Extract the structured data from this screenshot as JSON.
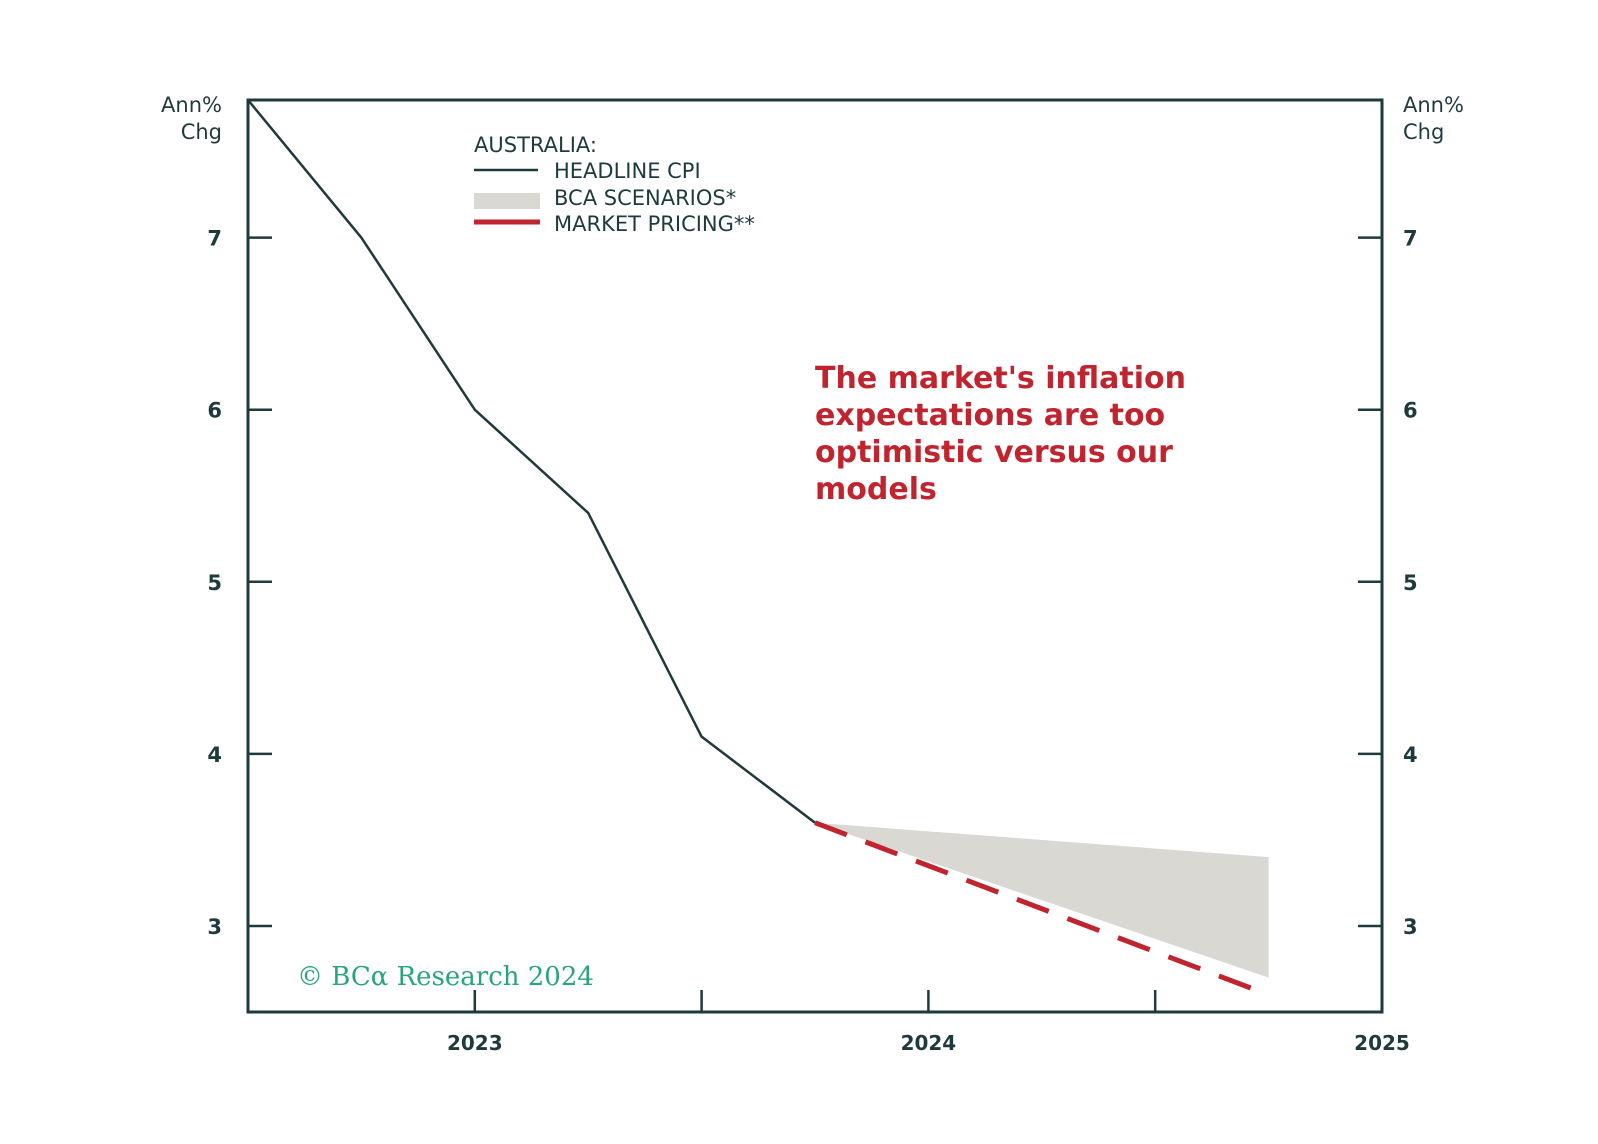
{
  "chart_data": {
    "type": "line",
    "title": "AUSTRALIA:",
    "y_unit_left": [
      "Ann%",
      "Chg"
    ],
    "y_unit_right": [
      "Ann%",
      "Chg"
    ],
    "ylim": [
      2.5,
      7.8
    ],
    "yticks": [
      3,
      4,
      5,
      6,
      7
    ],
    "xlim": [
      2022.5,
      2025.0
    ],
    "xticks": [
      2023.0,
      2024.0,
      2025.0
    ],
    "xtick_labels": [
      "2023",
      "2024",
      "2025"
    ],
    "x_minor_ticks": [
      2023.5,
      2024.5
    ],
    "series": [
      {
        "name": "HEADLINE CPI",
        "style": "solid",
        "color": "#1f3a3d",
        "x": [
          2022.5,
          2022.75,
          2023.0,
          2023.25,
          2023.5,
          2023.75
        ],
        "values": [
          7.8,
          7.0,
          6.0,
          5.4,
          4.1,
          3.6
        ]
      },
      {
        "name": "BCA SCENARIOS*",
        "style": "band",
        "color": "#d9d8d2",
        "x": [
          2023.75,
          2024.75
        ],
        "upper": [
          3.6,
          3.4
        ],
        "lower": [
          3.6,
          2.7
        ]
      },
      {
        "name": "MARKET PRICING**",
        "style": "dashed",
        "color": "#c0242f",
        "x": [
          2023.75,
          2024.75
        ],
        "values": [
          3.6,
          2.6
        ]
      }
    ],
    "annotation": [
      "The market's inflation",
      "expectations are too",
      "optimistic versus our",
      "models"
    ],
    "annotation_color": "#c0242f",
    "credit": "© BCα Research 2024",
    "credit_color": "#2aa57a",
    "axis_color": "#1f3a3d"
  }
}
